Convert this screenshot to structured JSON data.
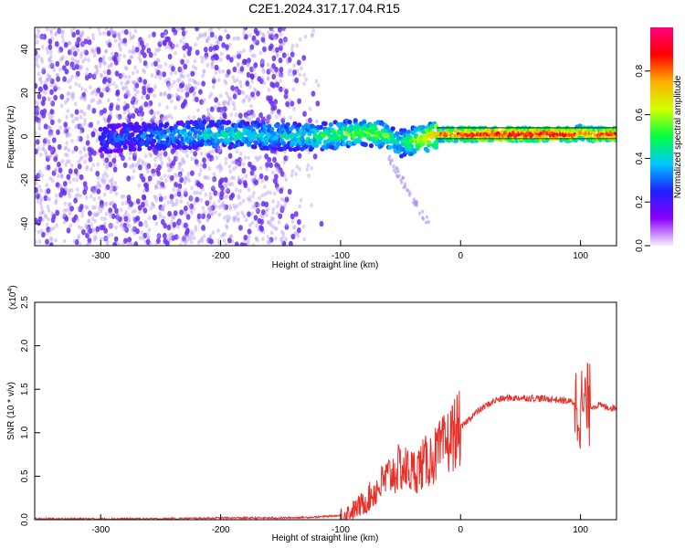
{
  "title": "C2E1.2024.317.17.04.R15",
  "colors": {
    "snr_line": "#e8302a",
    "spectrum_core_low": "#4b0fd6",
    "spectrum_core_mid": "#13c9d8",
    "spectrum_core_high": "#e01420",
    "scatter": "#7a4cf0",
    "colorbar_stops": [
      "#f7f0ff",
      "#8a00ff",
      "#2020ff",
      "#00c8ff",
      "#00ff40",
      "#d0ff00",
      "#ffb000",
      "#ff0000",
      "#ff0080"
    ]
  },
  "chart_data": [
    {
      "type": "heatmap",
      "title": "C2E1.2024.317.17.04.R15",
      "xlabel": "Height of straight line (km)",
      "ylabel": "Frequency (Hz)",
      "xlim": [
        -355,
        130
      ],
      "ylim": [
        -50,
        50
      ],
      "xticks": [
        "-300",
        "-200",
        "-100",
        "0",
        "100"
      ],
      "xtick_values": [
        -300,
        -200,
        -100,
        0,
        100
      ],
      "yticks": [
        "-40",
        "-20",
        "0",
        "20",
        "40"
      ],
      "ytick_values": [
        -40,
        -20,
        0,
        20,
        40
      ],
      "colorbar": {
        "label": "Normalized spectral amplitude",
        "range": [
          0,
          1
        ],
        "ticks": [
          "0.0",
          "0.2",
          "0.4",
          "0.6",
          "0.8"
        ],
        "tick_values": [
          0.0,
          0.2,
          0.4,
          0.6,
          0.8
        ]
      },
      "ridge": {
        "x": [
          -300,
          -260,
          -220,
          -180,
          -150,
          -120,
          -100,
          -80,
          -60,
          -50,
          -40,
          -30,
          -20,
          0,
          40,
          80,
          95,
          100,
          110,
          130
        ],
        "y": [
          -1,
          0,
          1,
          1,
          0,
          0,
          1,
          2,
          0,
          -3,
          -2,
          -1,
          1,
          1,
          1,
          1,
          1,
          2,
          1,
          1
        ],
        "amplitude": [
          0.15,
          0.2,
          0.3,
          0.35,
          0.3,
          0.4,
          0.45,
          0.5,
          0.45,
          0.35,
          0.5,
          0.6,
          0.75,
          0.85,
          0.9,
          0.9,
          0.85,
          0.7,
          0.85,
          0.9
        ]
      },
      "noise_extent_x": [
        -355,
        -115
      ]
    },
    {
      "type": "line",
      "xlabel": "Height of straight line (km)",
      "ylabel": "SNR (10 * v/v)",
      "y_multiplier": "(x10",
      "y_multiplier_exp": "4",
      "y_multiplier_close": ")",
      "xlim": [
        -355,
        130
      ],
      "ylim": [
        0,
        2.5
      ],
      "xticks": [
        "-300",
        "-200",
        "-100",
        "0",
        "100"
      ],
      "xtick_values": [
        -300,
        -200,
        -100,
        0,
        100
      ],
      "yticks": [
        "0.0",
        "0.5",
        "1.0",
        "1.5",
        "2.0",
        "2.5"
      ],
      "ytick_values": [
        0.0,
        0.5,
        1.0,
        1.5,
        2.0,
        2.5
      ],
      "series": [
        {
          "x": [
            -355,
            -300,
            -250,
            -200,
            -150,
            -120,
            -100,
            -90,
            -80,
            -70,
            -60,
            -50,
            -40,
            -30,
            -20,
            -10,
            -5,
            0,
            10,
            20,
            30,
            40,
            60,
            80,
            95,
            98,
            100,
            102,
            105,
            110,
            115,
            120,
            130
          ],
          "y": [
            0.01,
            0.01,
            0.01,
            0.02,
            0.02,
            0.03,
            0.05,
            0.1,
            0.2,
            0.35,
            0.5,
            0.6,
            0.55,
            0.65,
            0.75,
            0.9,
            1.0,
            1.05,
            1.2,
            1.3,
            1.38,
            1.4,
            1.4,
            1.38,
            1.35,
            1.3,
            1.3,
            1.3,
            1.32,
            1.3,
            1.32,
            1.3,
            1.28
          ]
        }
      ]
    }
  ]
}
